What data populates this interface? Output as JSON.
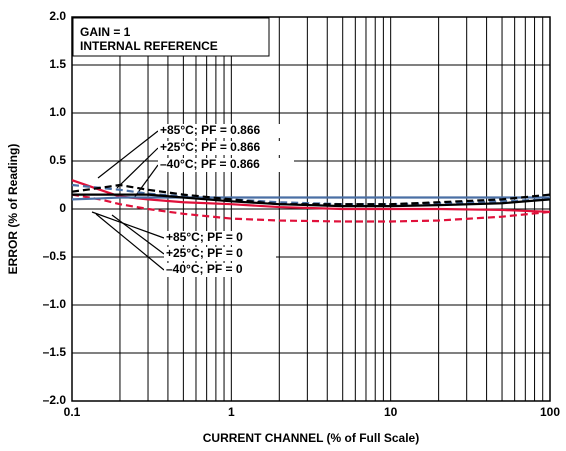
{
  "chart_data": {
    "type": "line",
    "xlabel": "CURRENT CHANNEL (% of Full Scale)",
    "ylabel": "ERROR (% of Reading)",
    "xscale": "log",
    "grid": true,
    "xlim": [
      0.1,
      100
    ],
    "xticks": [
      0.1,
      1,
      10,
      100
    ],
    "ylim": [
      -2,
      2
    ],
    "yticks": [
      {
        "value": -2,
        "label": "–2.0"
      },
      {
        "value": -1.5,
        "label": "–1.5"
      },
      {
        "value": -1,
        "label": "–1.0"
      },
      {
        "value": -0.5,
        "label": "–0.5"
      },
      0,
      0.5,
      {
        "value": 1,
        "label": "1.0"
      },
      1.5,
      {
        "value": 2,
        "label": "2.0"
      }
    ],
    "x": [
      0.1,
      0.15,
      0.2,
      0.3,
      0.5,
      1,
      2,
      5,
      10,
      20,
      50,
      100
    ],
    "series": [
      {
        "color": "#e0103a",
        "dashed": false,
        "values": [
          0.3,
          0.2,
          0.13,
          0.1,
          0.07,
          0.05,
          0.02,
          0.0,
          0.0,
          0.0,
          -0.01,
          -0.03
        ]
      },
      {
        "color": "#e0103a",
        "dashed": true,
        "values": [
          0.15,
          0.1,
          0.05,
          0.0,
          -0.05,
          -0.1,
          -0.12,
          -0.13,
          -0.13,
          -0.12,
          -0.08,
          -0.03
        ]
      },
      {
        "color": "#4a6fa5",
        "dashed": false,
        "values": [
          0.1,
          0.11,
          0.12,
          0.12,
          0.12,
          0.12,
          0.12,
          0.12,
          0.12,
          0.12,
          0.12,
          0.12
        ]
      },
      {
        "color": "#4a6fa5",
        "dashed": true,
        "values": [
          0.25,
          0.22,
          0.2,
          0.16,
          0.13,
          0.1,
          0.07,
          0.05,
          0.05,
          0.06,
          0.08,
          0.1
        ]
      },
      {
        "color": "#000000",
        "dashed": false,
        "values": [
          0.15,
          0.15,
          0.15,
          0.15,
          0.12,
          0.08,
          0.05,
          0.03,
          0.03,
          0.04,
          0.06,
          0.1
        ]
      },
      {
        "color": "#000000",
        "dashed": true,
        "values": [
          0.18,
          0.22,
          0.25,
          0.2,
          0.15,
          0.1,
          0.05,
          0.05,
          0.05,
          0.07,
          0.1,
          0.15
        ]
      }
    ],
    "annotations": [
      "GAIN = 1",
      "INTERNAL REFERENCE",
      "+85°C; PF = 0.866",
      "+25°C; PF = 0.866",
      "–40°C; PF = 0.866",
      "+85°C; PF = 0",
      "+25°C; PF = 0",
      "–40°C; PF = 0"
    ]
  }
}
